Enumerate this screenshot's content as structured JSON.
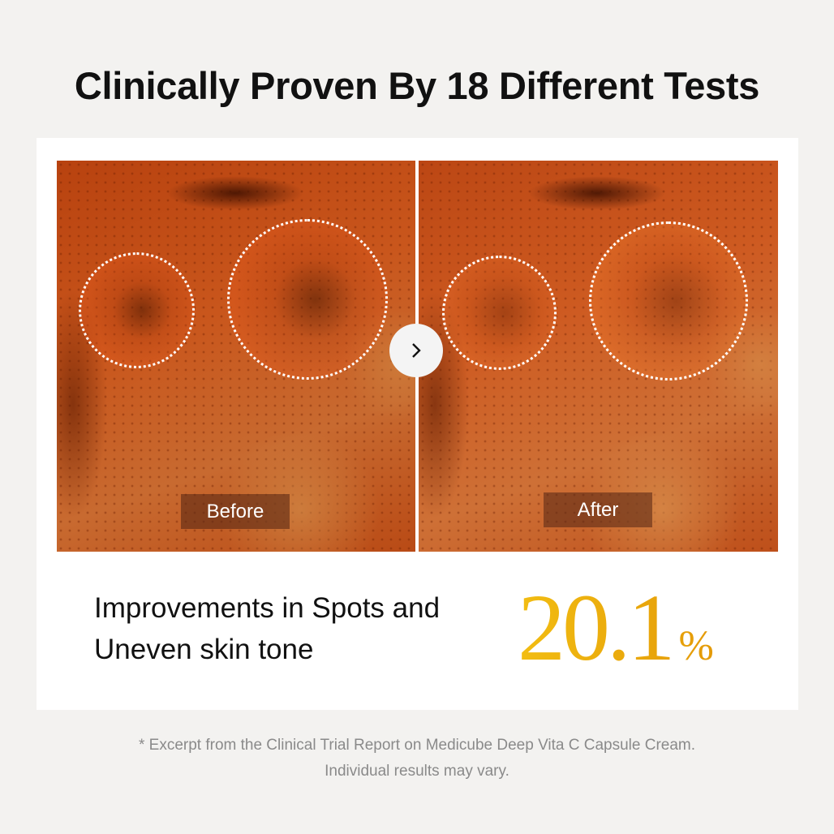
{
  "title": "Clinically Proven By 18 Different Tests",
  "comparison": {
    "before_label": "Before",
    "after_label": "After",
    "next_icon": "chevron-right-icon"
  },
  "claim": {
    "line1": "Improvements in Spots and",
    "line2": "Uneven skin tone"
  },
  "stat": {
    "value": "20.1",
    "unit": "%",
    "color": "#eaa40a"
  },
  "footnote": {
    "line1": "* Excerpt from the Clinical Trial Report on Medicube Deep Vita C Capsule Cream.",
    "line2": "Individual results may vary."
  }
}
